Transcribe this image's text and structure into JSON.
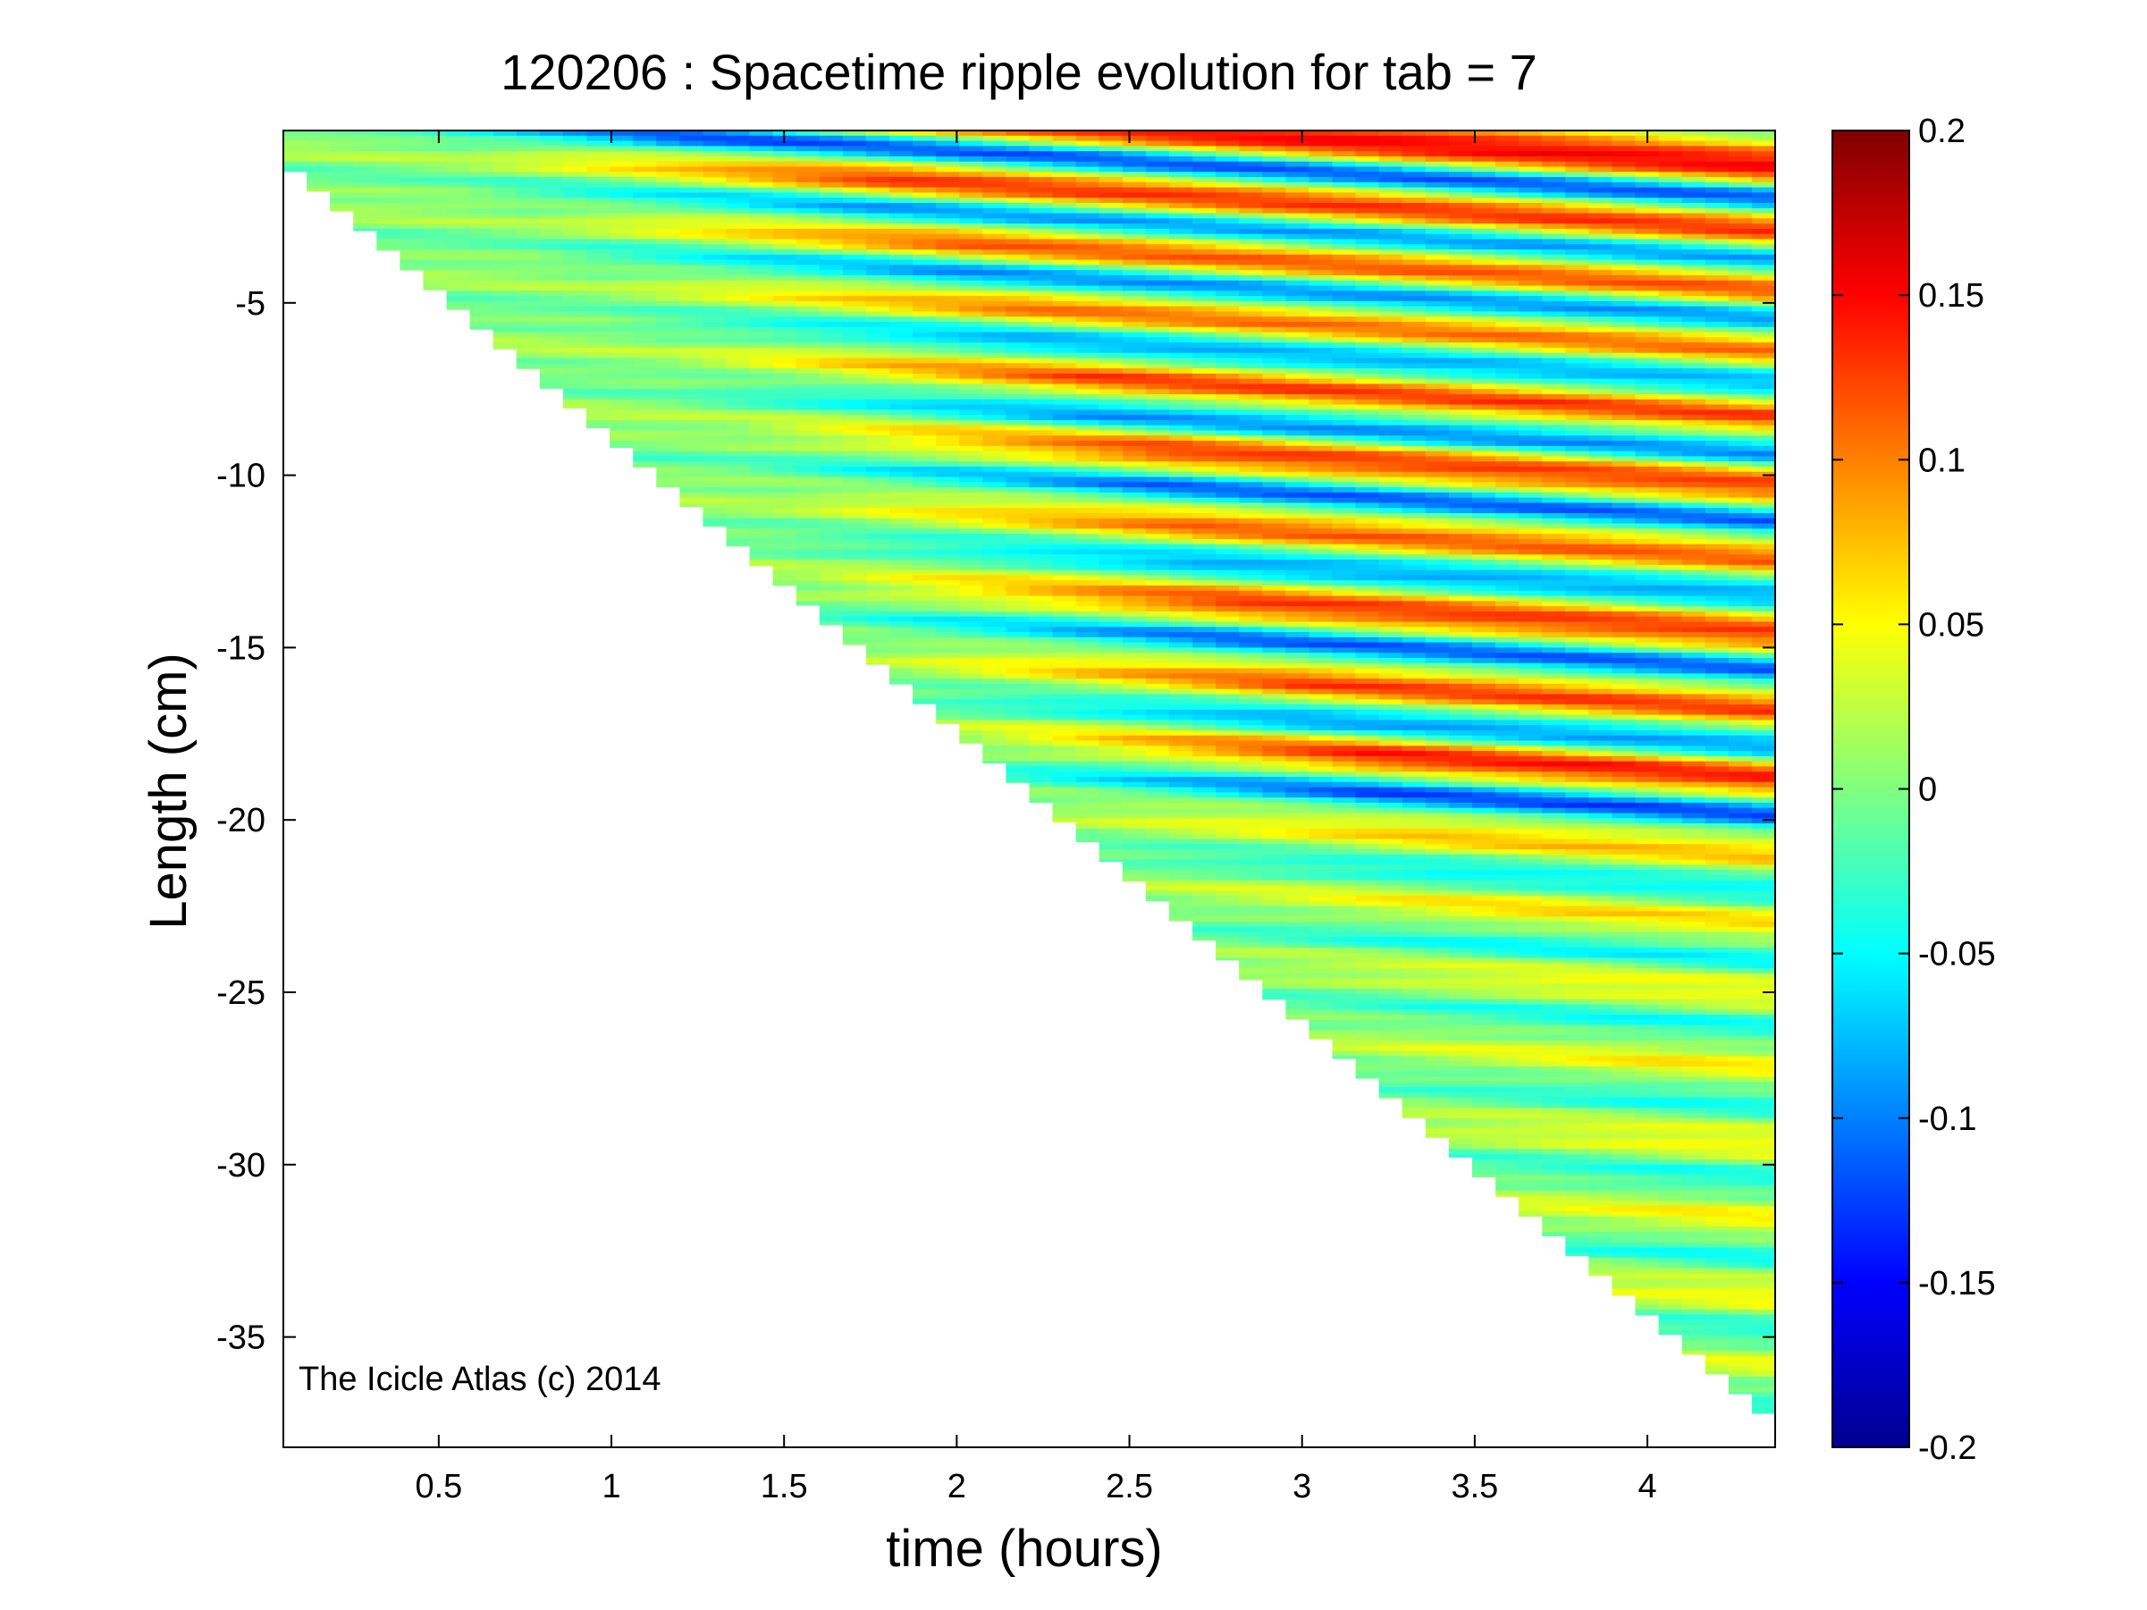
{
  "chart_data": {
    "type": "heatmap",
    "title": "120206 : Spacetime ripple evolution for tab = 7",
    "xlabel": "time (hours)",
    "ylabel": "Length (cm)",
    "xlim": [
      0.05,
      4.37
    ],
    "ylim": [
      -38.2,
      0
    ],
    "x_ticks": [
      0.5,
      1,
      1.5,
      2,
      2.5,
      3,
      3.5,
      4
    ],
    "x_tick_labels": [
      "0.5",
      "1",
      "1.5",
      "2",
      "2.5",
      "3",
      "3.5",
      "4"
    ],
    "y_ticks": [
      -5,
      -10,
      -15,
      -20,
      -25,
      -30,
      -35
    ],
    "y_tick_labels": [
      "-5",
      "-10",
      "-15",
      "-20",
      "-25",
      "-30",
      "-35"
    ],
    "data_boundary": {
      "description_free": true,
      "points": [
        [
          0.05,
          -0.9
        ],
        [
          4.37,
          -37.5
        ]
      ]
    },
    "colormap": "jet",
    "colorbar": {
      "range": [
        -0.2,
        0.2
      ],
      "ticks": [
        0.2,
        0.15,
        0.1,
        0.05,
        0,
        -0.05,
        -0.1,
        -0.15,
        -0.2
      ],
      "tick_labels": [
        "0.2",
        "0.15",
        "0.1",
        "0.05",
        "0",
        "-0.05",
        "-0.1",
        "-0.15",
        "-0.2"
      ]
    },
    "ridges": [
      {
        "y_end": -1.0,
        "amp": 0.16,
        "t_onset": 1.0
      },
      {
        "y_end": -2.8,
        "amp": 0.14,
        "t_onset": 1.6
      },
      {
        "y_end": -4.5,
        "amp": 0.13,
        "t_onset": 1.8
      },
      {
        "y_end": -6.3,
        "amp": 0.11,
        "t_onset": 2.0
      },
      {
        "y_end": -8.3,
        "amp": 0.12,
        "t_onset": 2.2
      },
      {
        "y_end": -10.3,
        "amp": 0.13,
        "t_onset": 2.4
      },
      {
        "y_end": -12.4,
        "amp": 0.11,
        "t_onset": 2.5
      },
      {
        "y_end": -14.6,
        "amp": 0.13,
        "t_onset": 2.6
      },
      {
        "y_end": -16.8,
        "amp": 0.12,
        "t_onset": 2.8
      },
      {
        "y_end": -18.8,
        "amp": 0.14,
        "t_onset": 3.0
      },
      {
        "y_end": -21.0,
        "amp": 0.07,
        "t_onset": 3.2
      },
      {
        "y_end": -23.0,
        "amp": 0.06,
        "t_onset": 3.4
      },
      {
        "y_end": -25.0,
        "amp": 0.05,
        "t_onset": 3.6
      },
      {
        "y_end": -27.2,
        "amp": 0.05,
        "t_onset": 3.8
      },
      {
        "y_end": -29.4,
        "amp": 0.05,
        "t_onset": 3.9
      },
      {
        "y_end": -31.6,
        "amp": 0.05,
        "t_onset": 4.0
      },
      {
        "y_end": -33.8,
        "amp": 0.05,
        "t_onset": 4.1
      },
      {
        "y_end": -35.8,
        "amp": 0.04,
        "t_onset": 4.2
      }
    ],
    "ridge_drift_cm": 2.5,
    "colors": {
      "jet": [
        "#00008f",
        "#0000ff",
        "#0080ff",
        "#00ffff",
        "#80ff80",
        "#ffff00",
        "#ff8000",
        "#ff0000",
        "#800000"
      ]
    }
  },
  "annotation": "The Icicle Atlas (c) 2014"
}
